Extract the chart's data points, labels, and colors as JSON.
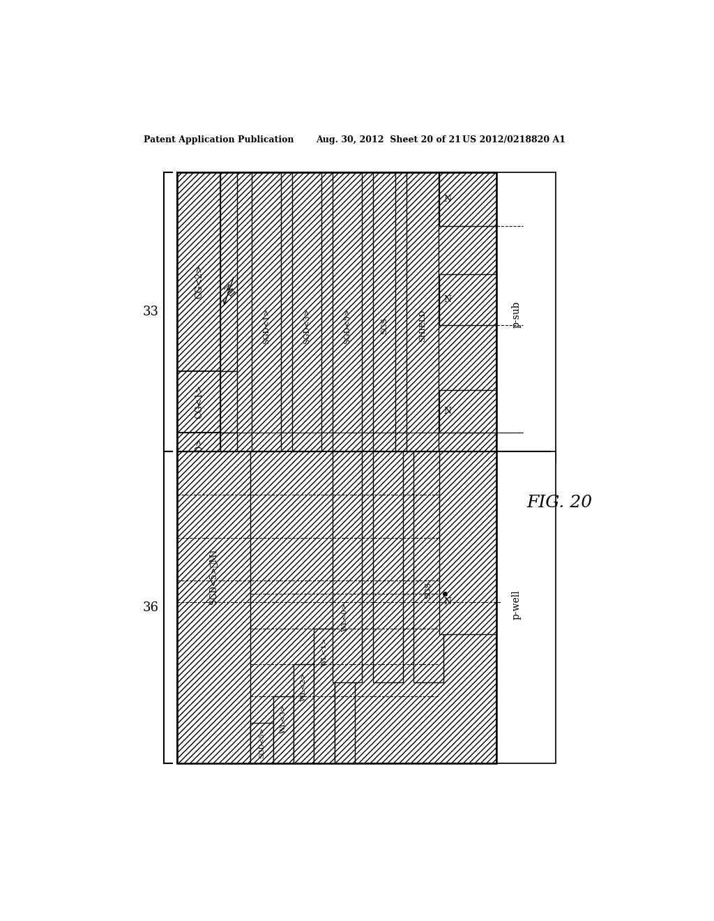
{
  "title_left": "Patent Application Publication",
  "title_mid": "Aug. 30, 2012  Sheet 20 of 21",
  "title_right": "US 2012/0218820 A1",
  "fig_label": "FIG. 20",
  "background_color": "#ffffff"
}
